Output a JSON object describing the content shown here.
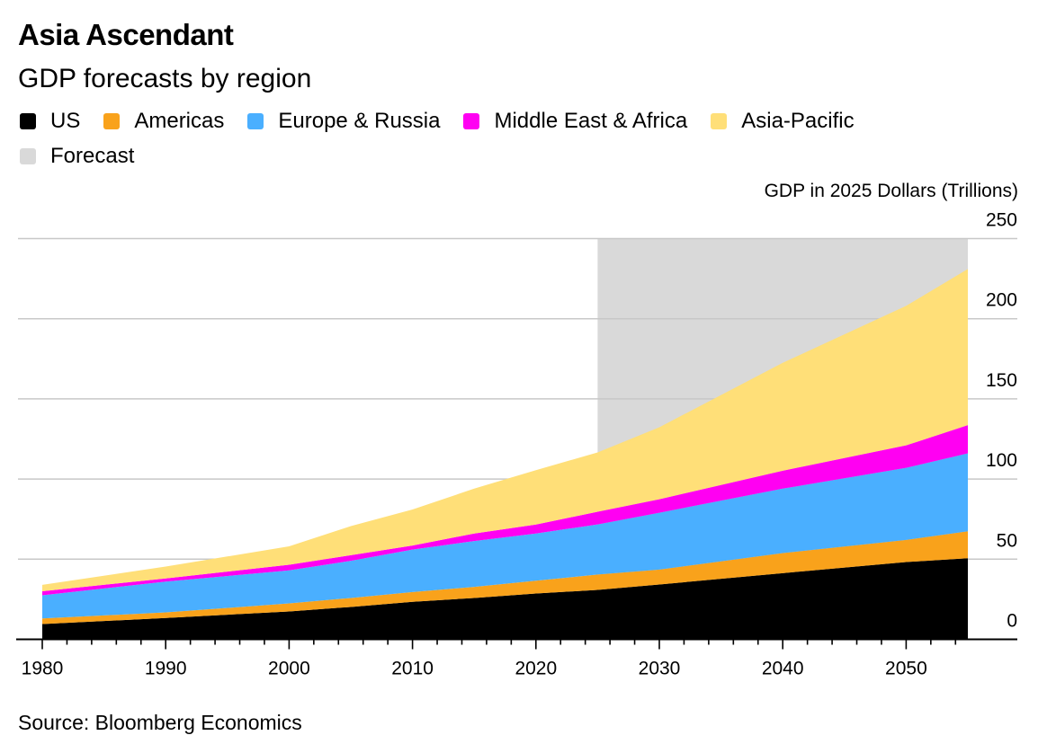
{
  "header": {
    "title": "Asia Ascendant",
    "subtitle": "GDP forecasts by region"
  },
  "legend": [
    {
      "label": "US",
      "color": "#000000"
    },
    {
      "label": "Americas",
      "color": "#f9a21b"
    },
    {
      "label": "Europe & Russia",
      "color": "#4aafff"
    },
    {
      "label": "Middle East & Africa",
      "color": "#ff00f2"
    },
    {
      "label": "Asia-Pacific",
      "color": "#ffdf78"
    },
    {
      "label": "Forecast",
      "color": "#d9d9d9"
    }
  ],
  "footer": {
    "source": "Source: Bloomberg Economics"
  },
  "chart_data": {
    "type": "area",
    "stacked": true,
    "title": "Asia Ascendant",
    "subtitle": "GDP forecasts by region",
    "xlabel": "",
    "ylabel": "GDP in 2025 Dollars (Trillions)",
    "x": [
      1980,
      1990,
      2000,
      2005,
      2010,
      2015,
      2020,
      2025,
      2030,
      2040,
      2050,
      2055
    ],
    "series": [
      {
        "name": "US",
        "color": "#000000",
        "values": [
          9.5,
          13.3,
          17.4,
          20.2,
          23.4,
          25.8,
          28.6,
          30.8,
          34.2,
          41.3,
          48.2,
          50.6
        ]
      },
      {
        "name": "Americas",
        "color": "#f9a21b",
        "values": [
          3.5,
          3.5,
          5.0,
          5.6,
          6.1,
          6.9,
          8.0,
          9.6,
          9.3,
          12.5,
          13.8,
          16.8
        ]
      },
      {
        "name": "Europe & Russia",
        "color": "#4aafff",
        "values": [
          14.5,
          19.2,
          20.6,
          23.2,
          26.5,
          28.6,
          29.4,
          31.3,
          35.5,
          40.2,
          45.0,
          48.6
        ]
      },
      {
        "name": "Middle East & Africa",
        "color": "#ff00f2",
        "values": [
          2.5,
          2.0,
          3.5,
          3.5,
          2.5,
          4.7,
          5.6,
          7.9,
          8.4,
          11.2,
          14.0,
          17.6
        ]
      },
      {
        "name": "Asia-Pacific",
        "color": "#ffdf78",
        "values": [
          4.0,
          7.4,
          11.5,
          18.1,
          22.5,
          28.0,
          33.9,
          37.0,
          44.9,
          67.3,
          87.0,
          97.4
        ]
      }
    ],
    "forecast_range": [
      2025,
      2055
    ],
    "forecast_color": "#d9d9d9",
    "xlim": [
      1980,
      2055
    ],
    "ylim": [
      0,
      250
    ],
    "yticks": [
      0,
      50,
      100,
      150,
      200,
      250
    ],
    "xticks_major": [
      1980,
      1990,
      2000,
      2010,
      2020,
      2030,
      2040,
      2050
    ],
    "xticks_minor_step": 2,
    "y_axis_position": "right",
    "grid": true,
    "legend_position": "top-left"
  }
}
